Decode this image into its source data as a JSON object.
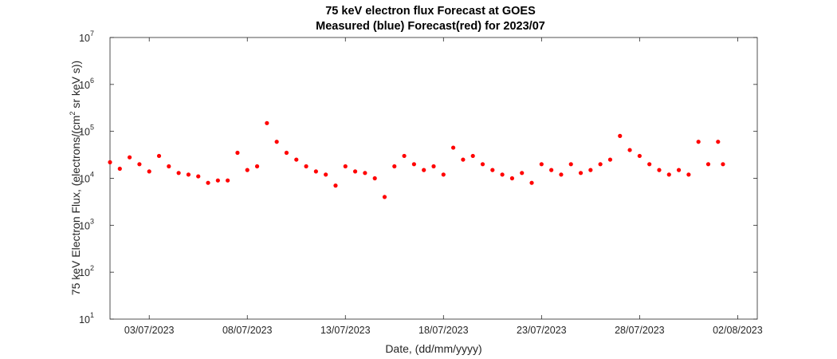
{
  "chart_data": {
    "type": "scatter",
    "title": "75 keV electron flux Forecast at GOES",
    "subtitle": "Measured (blue) Forecast(red) for 2023/07",
    "xlabel": "Date, (dd/mm/yyyy)",
    "ylabel": "75 keV Electron Flux, (electrons/(cm",
    "ylabel_sup": "2",
    "ylabel_tail": " sr keV s))",
    "xlim": [
      "01/07/2023",
      "03/08/2023"
    ],
    "ylim": [
      10,
      10000000
    ],
    "yscale": "log",
    "grid": false,
    "x_ticks": [
      {
        "date": "03/07/2023",
        "label": "03/07/2023"
      },
      {
        "date": "08/07/2023",
        "label": "08/07/2023"
      },
      {
        "date": "13/07/2023",
        "label": "13/07/2023"
      },
      {
        "date": "18/07/2023",
        "label": "18/07/2023"
      },
      {
        "date": "23/07/2023",
        "label": "23/07/2023"
      },
      {
        "date": "28/07/2023",
        "label": "28/07/2023"
      },
      {
        "date": "02/08/2023",
        "label": "02/08/2023"
      }
    ],
    "y_ticks": [
      {
        "value": 10,
        "base": "10",
        "exp": "1"
      },
      {
        "value": 100,
        "base": "10",
        "exp": "2"
      },
      {
        "value": 1000,
        "base": "10",
        "exp": "3"
      },
      {
        "value": 10000,
        "base": "10",
        "exp": "4"
      },
      {
        "value": 100000,
        "base": "10",
        "exp": "5"
      },
      {
        "value": 1000000,
        "base": "10",
        "exp": "6"
      },
      {
        "value": 10000000,
        "base": "10",
        "exp": "7"
      }
    ],
    "series": [
      {
        "color": "#ff0000",
        "points": [
          [
            "01/07/2023 00:00",
            22000
          ],
          [
            "01/07/2023 12:00",
            16000
          ],
          [
            "02/07/2023 00:00",
            28000
          ],
          [
            "02/07/2023 12:00",
            20000
          ],
          [
            "03/07/2023 00:00",
            14000
          ],
          [
            "03/07/2023 12:00",
            30000
          ],
          [
            "04/07/2023 00:00",
            18000
          ],
          [
            "04/07/2023 12:00",
            13000
          ],
          [
            "05/07/2023 00:00",
            12000
          ],
          [
            "05/07/2023 12:00",
            11000
          ],
          [
            "06/07/2023 00:00",
            8000
          ],
          [
            "06/07/2023 12:00",
            9000
          ],
          [
            "07/07/2023 00:00",
            9000
          ],
          [
            "07/07/2023 12:00",
            35000
          ],
          [
            "08/07/2023 00:00",
            15000
          ],
          [
            "08/07/2023 12:00",
            18000
          ],
          [
            "09/07/2023 00:00",
            150000
          ],
          [
            "09/07/2023 12:00",
            60000
          ],
          [
            "10/07/2023 00:00",
            35000
          ],
          [
            "10/07/2023 12:00",
            25000
          ],
          [
            "11/07/2023 00:00",
            18000
          ],
          [
            "11/07/2023 12:00",
            14000
          ],
          [
            "12/07/2023 00:00",
            12000
          ],
          [
            "12/07/2023 12:00",
            7000
          ],
          [
            "13/07/2023 00:00",
            18000
          ],
          [
            "13/07/2023 12:00",
            14000
          ],
          [
            "14/07/2023 00:00",
            13000
          ],
          [
            "14/07/2023 12:00",
            10000
          ],
          [
            "15/07/2023 00:00",
            4000
          ],
          [
            "15/07/2023 12:00",
            18000
          ],
          [
            "16/07/2023 00:00",
            30000
          ],
          [
            "16/07/2023 12:00",
            20000
          ],
          [
            "17/07/2023 00:00",
            15000
          ],
          [
            "17/07/2023 12:00",
            18000
          ],
          [
            "18/07/2023 00:00",
            12000
          ],
          [
            "18/07/2023 12:00",
            45000
          ],
          [
            "19/07/2023 00:00",
            25000
          ],
          [
            "19/07/2023 12:00",
            30000
          ],
          [
            "20/07/2023 00:00",
            20000
          ],
          [
            "20/07/2023 12:00",
            15000
          ],
          [
            "21/07/2023 00:00",
            12000
          ],
          [
            "21/07/2023 12:00",
            10000
          ],
          [
            "22/07/2023 00:00",
            13000
          ],
          [
            "22/07/2023 12:00",
            8000
          ],
          [
            "23/07/2023 00:00",
            20000
          ],
          [
            "23/07/2023 12:00",
            15000
          ],
          [
            "24/07/2023 00:00",
            12000
          ],
          [
            "24/07/2023 12:00",
            20000
          ],
          [
            "25/07/2023 00:00",
            13000
          ],
          [
            "25/07/2023 12:00",
            15000
          ],
          [
            "26/07/2023 00:00",
            20000
          ],
          [
            "26/07/2023 12:00",
            25000
          ],
          [
            "27/07/2023 00:00",
            80000
          ],
          [
            "27/07/2023 12:00",
            40000
          ],
          [
            "28/07/2023 00:00",
            30000
          ],
          [
            "28/07/2023 12:00",
            20000
          ],
          [
            "29/07/2023 00:00",
            15000
          ],
          [
            "29/07/2023 12:00",
            12000
          ],
          [
            "30/07/2023 00:00",
            15000
          ],
          [
            "30/07/2023 12:00",
            12000
          ],
          [
            "31/07/2023 00:00",
            60000
          ],
          [
            "31/07/2023 12:00",
            20000
          ],
          [
            "01/08/2023 00:00",
            60000
          ],
          [
            "01/08/2023 06:00",
            20000
          ]
        ]
      }
    ]
  }
}
